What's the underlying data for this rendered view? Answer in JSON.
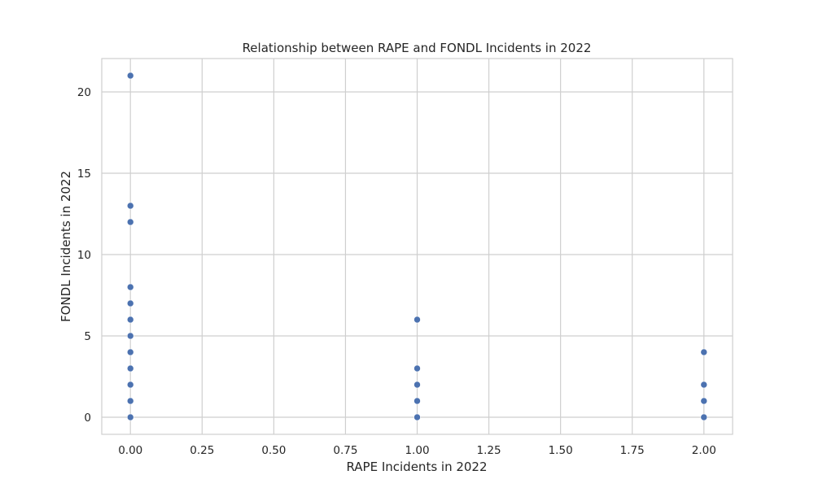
{
  "chart_data": {
    "type": "scatter",
    "title": "Relationship between RAPE and FONDL Incidents in 2022",
    "xlabel": "RAPE Incidents in 2022",
    "ylabel": "FONDL Incidents in 2022",
    "xlim": [
      -0.1,
      2.1
    ],
    "ylim": [
      -1.05,
      22.05
    ],
    "xticks": [
      0,
      0.25,
      0.5,
      0.75,
      1,
      1.25,
      1.5,
      1.75,
      2
    ],
    "xtick_labels": [
      "0.00",
      "0.25",
      "0.50",
      "0.75",
      "1.00",
      "1.25",
      "1.50",
      "1.75",
      "2.00"
    ],
    "yticks": [
      0,
      5,
      10,
      15,
      20
    ],
    "ytick_labels": [
      "0",
      "5",
      "10",
      "15",
      "20"
    ],
    "grid": true,
    "point_color": "#4c72b0",
    "points": [
      {
        "x": 0,
        "y": 21
      },
      {
        "x": 0,
        "y": 13
      },
      {
        "x": 0,
        "y": 12
      },
      {
        "x": 0,
        "y": 8
      },
      {
        "x": 0,
        "y": 7
      },
      {
        "x": 0,
        "y": 6
      },
      {
        "x": 0,
        "y": 5
      },
      {
        "x": 0,
        "y": 4
      },
      {
        "x": 0,
        "y": 3
      },
      {
        "x": 0,
        "y": 2
      },
      {
        "x": 0,
        "y": 1
      },
      {
        "x": 0,
        "y": 0
      },
      {
        "x": 1,
        "y": 6
      },
      {
        "x": 1,
        "y": 3
      },
      {
        "x": 1,
        "y": 2
      },
      {
        "x": 1,
        "y": 1
      },
      {
        "x": 1,
        "y": 0
      },
      {
        "x": 2,
        "y": 4
      },
      {
        "x": 2,
        "y": 2
      },
      {
        "x": 2,
        "y": 1
      },
      {
        "x": 2,
        "y": 0
      }
    ]
  }
}
